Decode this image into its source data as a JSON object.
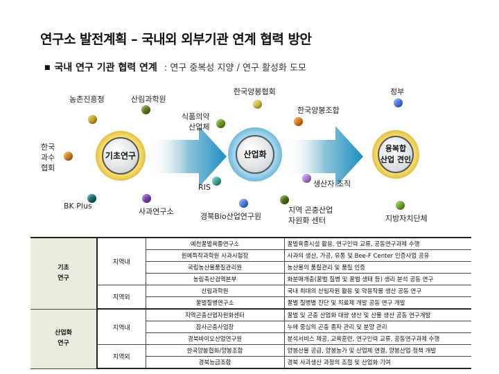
{
  "title": "연구소 발전계획 – 국내외 외부기관 연계 협력 방안",
  "subtitle": {
    "bullet": "■",
    "bold": "국내 연구 기관 협력 연계",
    "note": ": 연구 중복성 지양 / 연구 활성화 도모"
  },
  "stages": [
    {
      "label": "기초연구"
    },
    {
      "label": "산업화"
    },
    {
      "label": "융복합\n산업 견인",
      "line1": "융복합",
      "line2": "산업 견인"
    }
  ],
  "nodes": [
    {
      "label": "농촌진흥청",
      "color": "#c9a81a"
    },
    {
      "label": "산림과학원",
      "color": "#5a7a1a"
    },
    {
      "label": "한국\n과수\n협회",
      "l1": "한국",
      "l2": "과수",
      "l3": "협회",
      "color": "#d9801a"
    },
    {
      "label": "BK Plus",
      "color": "#0f6b6b"
    },
    {
      "label": "사과연구소",
      "color": "#7b3fb0"
    },
    {
      "label": "식품의약\n산업체",
      "l1": "식품의약",
      "l2": "산업체",
      "color": "#6a9a1a"
    },
    {
      "label": "RIS",
      "color": "#3aa898"
    },
    {
      "label": "한국양봉협회",
      "color": "#d8c040"
    },
    {
      "label": "한국양봉조합",
      "color": "#e07a10"
    },
    {
      "label": "생산자 조직",
      "color": "#b07ad8"
    },
    {
      "label": "경북Bio산업연구원",
      "color": "#4a7ae0"
    },
    {
      "label": "지역 곤충산업\n자원화 센터",
      "l1": "지역 곤충산업",
      "l2": "자원화 센터",
      "color": "#4a7010"
    },
    {
      "label": "정부",
      "color": "#4a7ae8"
    },
    {
      "label": "지방자치단체",
      "color": "#6aa82a"
    }
  ],
  "table": {
    "groups": [
      {
        "category": "기초\n연구",
        "c1": "기초",
        "c2": "연구",
        "regions": [
          {
            "region": "지역내",
            "rows": [
              [
                "예천꿀벌육종연구소",
                "꿀벌육종시설 활용, 연구인력 교류, 공동연구과제 수행"
              ],
              [
                "원예특작과학원 사과시험장",
                "사과의 생산, 가공, 유통 및 Bee-F Center 인증사업 공유"
              ],
              [
                "국립농산물품질관리원",
                "농산물의 품질관리 및 품질 인증"
              ],
              [
                "농림축산검역본부",
                "화분매개충(꿀벌 질병 및 꿀벌 생태 등) 생리 분석 공동 연구"
              ]
            ]
          },
          {
            "region": "지역외",
            "rows": [
              [
                "산림과학원",
                "국내 최대의 산림자원 활용 및 약용작물 생산 공동 연구"
              ],
              [
                "꿀벌질병연구소",
                "꿀벌 질병별 진단 및 치료제 개발 공동 연구 개발"
              ]
            ]
          }
        ]
      },
      {
        "category": "산업화\n연구",
        "c1": "산업화",
        "c2": "연구",
        "regions": [
          {
            "region": "지역내",
            "rows": [
              [
                "지역곤충산업자원화센터",
                "꿀벌 및 곤충 산업화 대량 생산 및 산물 생산 공동 연구개발"
              ],
              [
                "잠사곤충사업장",
                "누에 중심의 곤충 종자 관리 및 분양 관리"
              ],
              [
                "경북바이오산업연구원",
                "분석서비스 제공, 교육훈련, 연구인력 교류, 공동연구과제 수행"
              ]
            ]
          },
          {
            "region": "지역외",
            "rows": [
              [
                "한국양봉협회/양봉조합",
                "양봉산물 공급, 양봉농가 및 산업체 연결, 양봉산업 정책 개발"
              ],
              [
                "경북능금조합",
                "경북 사과생산 과정의 조절 및 산업화 기여"
              ]
            ]
          }
        ]
      }
    ]
  }
}
